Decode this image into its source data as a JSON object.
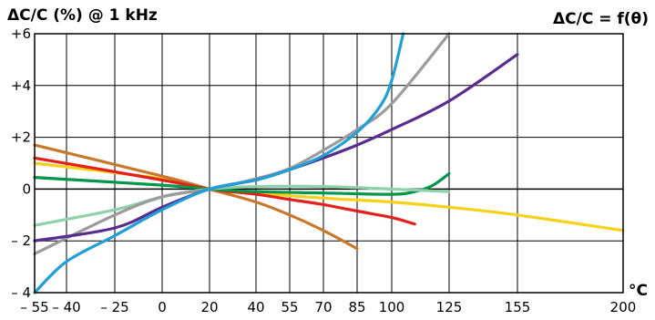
{
  "chart_data": {
    "type": "line",
    "title_left": "ΔC/C (%) @ 1 kHz",
    "title_right": "ΔC/C = f(θ)",
    "x_unit": "°C",
    "x_tick_labels": [
      "– 55",
      "– 40",
      "– 25",
      "0",
      "20",
      "40",
      "55",
      "70",
      "85",
      "100",
      "125",
      "155",
      "200"
    ],
    "x_tick_values": [
      -55,
      -40,
      -25,
      0,
      20,
      40,
      55,
      70,
      85,
      100,
      125,
      155,
      200
    ],
    "x_tick_index": [
      0,
      1,
      2,
      3,
      4,
      5,
      6,
      7,
      8,
      9,
      10,
      11,
      12
    ],
    "y_tick_labels": [
      "+6",
      "+4",
      "+2",
      "0",
      "– 2",
      "– 4"
    ],
    "y_tick_values": [
      6,
      4,
      2,
      0,
      -2,
      -4
    ],
    "ylim": [
      -4,
      6
    ],
    "grid": true,
    "series": [
      {
        "color": "#f7d117",
        "x": [
          -55,
          0,
          20,
          40,
          70,
          100,
          125,
          155,
          200
        ],
        "y": [
          1.0,
          0.4,
          0.0,
          -0.15,
          -0.35,
          -0.5,
          -0.7,
          -1.0,
          -1.6
        ]
      },
      {
        "color": "#c8782a",
        "x": [
          -55,
          0,
          20,
          40,
          55,
          70,
          85
        ],
        "y": [
          1.7,
          0.5,
          0.0,
          -0.5,
          -1.0,
          -1.6,
          -2.3
        ]
      },
      {
        "color": "#e3201b",
        "x": [
          -55,
          0,
          20,
          40,
          55,
          70,
          85,
          100,
          110
        ],
        "y": [
          1.2,
          0.35,
          0.0,
          -0.2,
          -0.4,
          -0.6,
          -0.85,
          -1.1,
          -1.35
        ]
      },
      {
        "color": "#00964b",
        "x": [
          -55,
          0,
          20,
          40,
          70,
          100,
          110,
          118,
          125
        ],
        "y": [
          0.45,
          0.15,
          0.0,
          -0.1,
          -0.15,
          -0.2,
          -0.1,
          0.15,
          0.6
        ]
      },
      {
        "color": "#8fd1a8",
        "x": [
          -55,
          -25,
          0,
          20,
          40,
          70,
          100,
          125
        ],
        "y": [
          -1.4,
          -0.8,
          -0.3,
          0.0,
          0.1,
          0.1,
          0.0,
          -0.1
        ]
      },
      {
        "color": "#9b9b9b",
        "x": [
          -55,
          -25,
          0,
          20,
          40,
          55,
          70,
          85,
          100,
          125
        ],
        "y": [
          -2.5,
          -1.0,
          -0.3,
          0.0,
          0.4,
          0.8,
          1.5,
          2.3,
          3.3,
          6.0
        ]
      },
      {
        "color": "#5b2c8f",
        "x": [
          -55,
          -25,
          0,
          20,
          40,
          55,
          70,
          85,
          100,
          125,
          155
        ],
        "y": [
          -2.0,
          -1.5,
          -0.7,
          0.0,
          0.35,
          0.75,
          1.2,
          1.7,
          2.3,
          3.4,
          5.2
        ]
      },
      {
        "color": "#1f9fd8",
        "x": [
          -55,
          -40,
          -25,
          0,
          20,
          40,
          55,
          70,
          85,
          95,
          100,
          105
        ],
        "y": [
          -4.0,
          -2.8,
          -1.8,
          -0.8,
          0.0,
          0.35,
          0.75,
          1.3,
          2.2,
          3.2,
          4.2,
          6.0
        ]
      }
    ]
  }
}
